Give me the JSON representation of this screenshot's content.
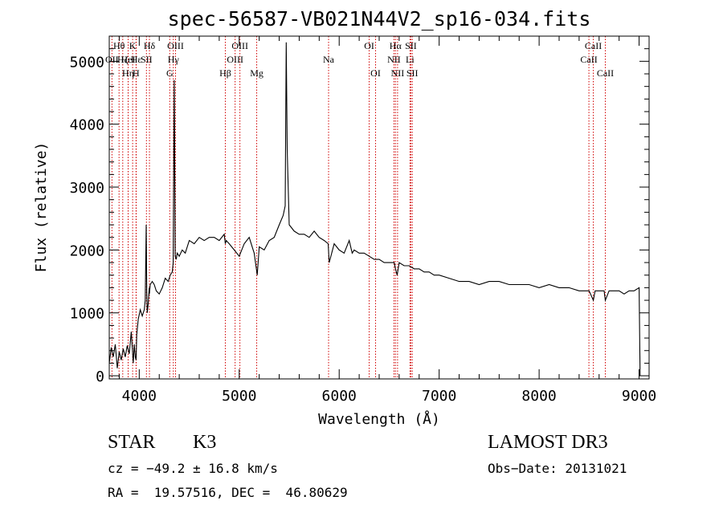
{
  "chart_data": {
    "type": "line",
    "title": "spec-56587-VB021N44V2_sp16-034.fits",
    "xlabel": "Wavelength (Å)",
    "ylabel": "Flux (relative)",
    "xlim": [
      3700,
      9100
    ],
    "ylim": [
      -50,
      5400
    ],
    "xticks": [
      4000,
      5000,
      6000,
      7000,
      8000,
      9000
    ],
    "yticks": [
      0,
      1000,
      2000,
      3000,
      4000,
      5000
    ],
    "xtick_labels": [
      "4000",
      "5000",
      "6000",
      "7000",
      "8000",
      "9000"
    ],
    "ytick_labels": [
      "0",
      "1000",
      "2000",
      "3000",
      "4000",
      "5000"
    ],
    "series": [
      {
        "name": "flux",
        "x": [
          3700,
          3720,
          3740,
          3760,
          3780,
          3800,
          3820,
          3840,
          3860,
          3880,
          3900,
          3920,
          3940,
          3950,
          3960,
          3968,
          3975,
          3990,
          4010,
          4030,
          4050,
          4060,
          4070,
          4075,
          4080,
          4090,
          4100,
          4102,
          4110,
          4130,
          4150,
          4170,
          4200,
          4230,
          4260,
          4290,
          4310,
          4330,
          4340,
          4350,
          4360,
          4370,
          4380,
          4400,
          4430,
          4460,
          4500,
          4550,
          4600,
          4650,
          4700,
          4750,
          4800,
          4850,
          4861,
          4870,
          4900,
          4950,
          5000,
          5050,
          5100,
          5150,
          5180,
          5200,
          5250,
          5300,
          5350,
          5400,
          5440,
          5460,
          5470,
          5480,
          5500,
          5550,
          5600,
          5650,
          5700,
          5750,
          5800,
          5850,
          5890,
          5900,
          5950,
          6000,
          6050,
          6100,
          6130,
          6150,
          6200,
          6250,
          6300,
          6350,
          6400,
          6450,
          6500,
          6550,
          6563,
          6580,
          6600,
          6650,
          6700,
          6750,
          6800,
          6850,
          6900,
          6950,
          7000,
          7100,
          7200,
          7300,
          7400,
          7500,
          7600,
          7700,
          7800,
          7900,
          8000,
          8100,
          8200,
          8300,
          8400,
          8500,
          8542,
          8560,
          8600,
          8650,
          8662,
          8700,
          8750,
          8800,
          8850,
          8900,
          8950,
          9000,
          9010
        ],
        "y": [
          200,
          450,
          300,
          500,
          120,
          380,
          250,
          430,
          300,
          480,
          350,
          700,
          200,
          500,
          300,
          250,
          650,
          900,
          1050,
          950,
          1050,
          1200,
          2400,
          1300,
          1000,
          1150,
          1400,
          1300,
          1450,
          1500,
          1450,
          1350,
          1300,
          1400,
          1550,
          1500,
          1600,
          1650,
          1800,
          4700,
          1900,
          1850,
          1950,
          1900,
          2000,
          1950,
          2150,
          2100,
          2200,
          2150,
          2200,
          2200,
          2150,
          2250,
          2100,
          2150,
          2100,
          2000,
          1900,
          2100,
          2200,
          1950,
          1600,
          2050,
          2000,
          2150,
          2200,
          2400,
          2550,
          2700,
          5300,
          3600,
          2400,
          2300,
          2250,
          2250,
          2200,
          2300,
          2200,
          2150,
          2100,
          1800,
          2100,
          2000,
          1950,
          2150,
          1950,
          2000,
          1950,
          1950,
          1900,
          1850,
          1850,
          1800,
          1800,
          1800,
          1700,
          1600,
          1800,
          1750,
          1750,
          1700,
          1700,
          1650,
          1650,
          1600,
          1600,
          1550,
          1500,
          1500,
          1450,
          1500,
          1500,
          1450,
          1450,
          1450,
          1400,
          1450,
          1400,
          1400,
          1350,
          1350,
          1200,
          1350,
          1350,
          1350,
          1200,
          1350,
          1350,
          1350,
          1300,
          1350,
          1350,
          1400,
          0
        ]
      }
    ],
    "lines": [
      {
        "label": "Hθ",
        "wave": 3798,
        "row": 0
      },
      {
        "label": "K",
        "wave": 3934,
        "row": 0
      },
      {
        "label": "Hδ",
        "wave": 4102,
        "row": 0
      },
      {
        "label": "OII",
        "wave": 3727,
        "row": 1
      },
      {
        "label": "H",
        "wave": 3968,
        "row": 2
      },
      {
        "label": "Hε",
        "wave": 3970,
        "row": 1
      },
      {
        "label": "HeI",
        "wave": 3889,
        "row": 1
      },
      {
        "label": "SII",
        "wave": 4072,
        "row": 1
      },
      {
        "label": "Hζ",
        "wave": 3835,
        "row": 1
      },
      {
        "label": "Hη",
        "wave": 3889,
        "row": 2
      },
      {
        "label": "OIII",
        "wave": 4363,
        "row": 0
      },
      {
        "label": "Hγ",
        "wave": 4341,
        "row": 1
      },
      {
        "label": "G",
        "wave": 4305,
        "row": 2
      },
      {
        "label": "OIII",
        "wave": 5007,
        "row": 0
      },
      {
        "label": "OIII",
        "wave": 4959,
        "row": 1
      },
      {
        "label": "Hβ",
        "wave": 4861,
        "row": 2
      },
      {
        "label": "Mg",
        "wave": 5175,
        "row": 2
      },
      {
        "label": "Na",
        "wave": 5894,
        "row": 1
      },
      {
        "label": "OI",
        "wave": 6300,
        "row": 0
      },
      {
        "label": "OI",
        "wave": 6364,
        "row": 2
      },
      {
        "label": "Hα",
        "wave": 6563,
        "row": 0
      },
      {
        "label": "SII",
        "wave": 6717,
        "row": 0
      },
      {
        "label": "NII",
        "wave": 6548,
        "row": 1
      },
      {
        "label": "Li",
        "wave": 6708,
        "row": 1
      },
      {
        "label": "NII",
        "wave": 6584,
        "row": 2
      },
      {
        "label": "SII",
        "wave": 6731,
        "row": 2
      },
      {
        "label": "CaII",
        "wave": 8498,
        "row": 1
      },
      {
        "label": "CaII",
        "wave": 8542,
        "row": 0
      },
      {
        "label": "CaII",
        "wave": 8662,
        "row": 2
      }
    ]
  },
  "info": {
    "class": "STAR",
    "subclass": "K3",
    "survey": "LAMOST DR3",
    "cz": "cz = −49.2 ± 16.8 km/s",
    "obsdate": "Obs−Date: 20131021",
    "radec": "RA =  19.57516, DEC =  46.80629"
  }
}
